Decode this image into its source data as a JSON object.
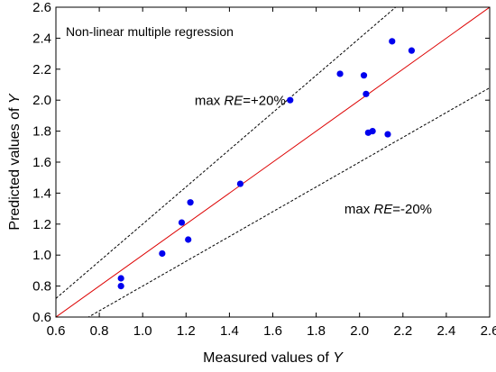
{
  "chart_data": {
    "type": "scatter",
    "title": "Non-linear multiple regression",
    "xlabel_prefix": "Measured values of ",
    "xlabel_var": "Y",
    "ylabel_prefix": "Predicted values of ",
    "ylabel_var": "Y",
    "xlim": [
      0.6,
      2.6
    ],
    "ylim": [
      0.6,
      2.6
    ],
    "xticks": [
      "0.6",
      "0.8",
      "1.0",
      "1.2",
      "1.4",
      "1.6",
      "1.8",
      "2.0",
      "2.2",
      "2.4",
      "2.6"
    ],
    "yticks": [
      "0.6",
      "0.8",
      "1.0",
      "1.2",
      "1.4",
      "1.6",
      "1.8",
      "2.0",
      "2.2",
      "2.4",
      "2.6"
    ],
    "grid": false,
    "points": [
      {
        "x": 0.9,
        "y": 0.85
      },
      {
        "x": 0.9,
        "y": 0.8
      },
      {
        "x": 1.09,
        "y": 1.01
      },
      {
        "x": 1.18,
        "y": 1.21
      },
      {
        "x": 1.21,
        "y": 1.1
      },
      {
        "x": 1.22,
        "y": 1.34
      },
      {
        "x": 1.45,
        "y": 1.46
      },
      {
        "x": 1.68,
        "y": 2.0
      },
      {
        "x": 1.91,
        "y": 2.17
      },
      {
        "x": 2.02,
        "y": 2.16
      },
      {
        "x": 2.03,
        "y": 2.04
      },
      {
        "x": 2.04,
        "y": 1.79
      },
      {
        "x": 2.06,
        "y": 1.8
      },
      {
        "x": 2.13,
        "y": 1.78
      },
      {
        "x": 2.15,
        "y": 2.38
      },
      {
        "x": 2.24,
        "y": 2.32
      }
    ],
    "point_color": "#0000ee",
    "reference_lines": [
      {
        "slope": 1.0,
        "style": "solid",
        "color": "#dd0000"
      },
      {
        "slope": 1.2,
        "style": "dashed",
        "color": "#000000"
      },
      {
        "slope": 0.8,
        "style": "dashed",
        "color": "#000000"
      }
    ],
    "annotations": [
      {
        "prefix": "max ",
        "var": "RE",
        "suffix": "=+20%",
        "x": 1.24,
        "y": 1.97
      },
      {
        "prefix": "max ",
        "var": "RE",
        "suffix": "=-20%",
        "x": 1.93,
        "y": 1.27
      }
    ]
  }
}
